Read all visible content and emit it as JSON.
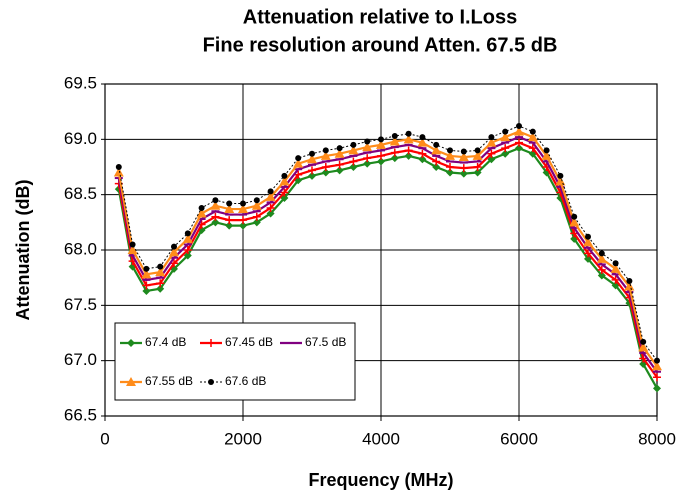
{
  "chart_data": {
    "type": "line",
    "title": "Attenuation relative to I.Loss",
    "subtitle": "Fine resolution around Atten. 67.5 dB",
    "x_label": "Frequency (MHz)",
    "y_label": "Attenuation (dB)",
    "x": [
      200,
      400,
      600,
      800,
      1000,
      1200,
      1400,
      1600,
      1800,
      2000,
      2200,
      2400,
      2600,
      2800,
      3000,
      3200,
      3400,
      3600,
      3800,
      4000,
      4200,
      4400,
      4600,
      4800,
      5000,
      5200,
      5400,
      5600,
      5800,
      6000,
      6200,
      6400,
      6600,
      6800,
      7000,
      7200,
      7400,
      7600,
      7800,
      8000
    ],
    "series": [
      {
        "name": "67.4 dB",
        "color": "#1e8a1e",
        "marker": "diamond",
        "dash": "solid",
        "values": [
          68.55,
          67.85,
          67.63,
          67.65,
          67.83,
          67.95,
          68.18,
          68.25,
          68.22,
          68.22,
          68.25,
          68.33,
          68.47,
          68.63,
          68.67,
          68.7,
          68.72,
          68.75,
          68.78,
          68.8,
          68.83,
          68.85,
          68.82,
          68.75,
          68.7,
          68.69,
          68.7,
          68.82,
          68.87,
          68.92,
          68.87,
          68.7,
          68.47,
          68.1,
          67.92,
          67.77,
          67.68,
          67.52,
          66.97,
          66.75
        ]
      },
      {
        "name": "67.45 dB",
        "color": "#ff0000",
        "marker": "plus",
        "dash": "solid",
        "values": [
          68.6,
          67.9,
          67.68,
          67.7,
          67.88,
          68.0,
          68.23,
          68.3,
          68.27,
          68.27,
          68.3,
          68.38,
          68.52,
          68.68,
          68.72,
          68.75,
          68.77,
          68.8,
          68.83,
          68.85,
          68.88,
          68.9,
          68.87,
          68.8,
          68.75,
          68.74,
          68.75,
          68.87,
          68.92,
          68.97,
          68.92,
          68.75,
          68.52,
          68.15,
          67.97,
          67.82,
          67.73,
          67.57,
          67.02,
          66.85
        ]
      },
      {
        "name": "67.5 dB",
        "color": "#800080",
        "marker": "dash",
        "dash": "solid",
        "values": [
          68.65,
          67.95,
          67.73,
          67.75,
          67.93,
          68.05,
          68.28,
          68.35,
          68.32,
          68.32,
          68.35,
          68.43,
          68.57,
          68.73,
          68.77,
          68.8,
          68.82,
          68.85,
          68.88,
          68.9,
          68.93,
          68.95,
          68.92,
          68.85,
          68.8,
          68.79,
          68.8,
          68.92,
          68.97,
          69.02,
          68.97,
          68.8,
          68.57,
          68.2,
          68.02,
          67.87,
          67.78,
          67.62,
          67.07,
          66.9
        ]
      },
      {
        "name": "67.55 dB",
        "color": "#ff8c1a",
        "marker": "triangle",
        "dash": "solid",
        "values": [
          68.7,
          68.0,
          67.78,
          67.8,
          67.98,
          68.1,
          68.33,
          68.4,
          68.37,
          68.37,
          68.4,
          68.48,
          68.62,
          68.78,
          68.82,
          68.85,
          68.87,
          68.9,
          68.93,
          68.95,
          68.98,
          69.0,
          68.97,
          68.9,
          68.85,
          68.84,
          68.85,
          68.97,
          69.02,
          69.07,
          69.02,
          68.85,
          68.62,
          68.25,
          68.07,
          67.92,
          67.83,
          67.67,
          67.12,
          66.95
        ]
      },
      {
        "name": "67.6 dB",
        "color": "#000000",
        "marker": "circle",
        "dash": "dotted",
        "values": [
          68.75,
          68.05,
          67.83,
          67.85,
          68.03,
          68.15,
          68.38,
          68.45,
          68.42,
          68.42,
          68.45,
          68.53,
          68.67,
          68.83,
          68.87,
          68.9,
          68.92,
          68.95,
          68.98,
          69.0,
          69.03,
          69.05,
          69.02,
          68.95,
          68.9,
          68.89,
          68.9,
          69.02,
          69.07,
          69.12,
          69.07,
          68.9,
          68.67,
          68.3,
          68.12,
          67.97,
          67.88,
          67.72,
          67.17,
          67.0
        ]
      }
    ],
    "xlim": [
      0,
      8000
    ],
    "xticks": [
      0,
      2000,
      4000,
      6000,
      8000
    ],
    "ylim": [
      66.5,
      69.5
    ],
    "yticks": [
      66.5,
      {
        "value": 67,
        "label": "67.0"
      },
      67.5,
      {
        "value": 68,
        "label": "68.0"
      },
      68.5,
      {
        "value": 69,
        "label": "69.0"
      },
      69.5
    ],
    "grid": true,
    "legend": "lower left"
  }
}
